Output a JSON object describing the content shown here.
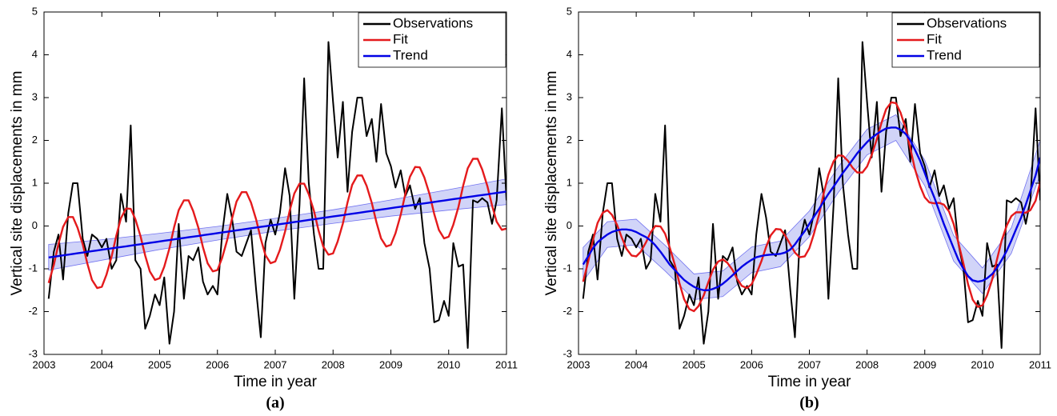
{
  "chart_data": [
    {
      "type": "line",
      "caption": "(a)",
      "x_label": "Time in year",
      "y_label": "Vertical site displacements in mm",
      "xlim": [
        2003,
        2011
      ],
      "ylim": [
        -3,
        5
      ],
      "xticks": [
        2003,
        2004,
        2005,
        2006,
        2007,
        2008,
        2009,
        2010,
        2011
      ],
      "yticks": [
        -3,
        -2,
        -1,
        0,
        1,
        2,
        3,
        4,
        5
      ],
      "legend": "upper right",
      "x": [
        2003.08,
        2003.17,
        2003.25,
        2003.33,
        2003.42,
        2003.5,
        2003.58,
        2003.67,
        2003.75,
        2003.83,
        2003.92,
        2004,
        2004.08,
        2004.17,
        2004.25,
        2004.33,
        2004.42,
        2004.5,
        2004.58,
        2004.67,
        2004.75,
        2004.83,
        2004.92,
        2005,
        2005.08,
        2005.17,
        2005.25,
        2005.33,
        2005.42,
        2005.5,
        2005.58,
        2005.67,
        2005.75,
        2005.83,
        2005.92,
        2006,
        2006.08,
        2006.17,
        2006.25,
        2006.33,
        2006.42,
        2006.5,
        2006.58,
        2006.67,
        2006.75,
        2006.83,
        2006.92,
        2007,
        2007.08,
        2007.17,
        2007.25,
        2007.33,
        2007.42,
        2007.5,
        2007.58,
        2007.67,
        2007.75,
        2007.83,
        2007.92,
        2008,
        2008.08,
        2008.17,
        2008.25,
        2008.33,
        2008.42,
        2008.5,
        2008.58,
        2008.67,
        2008.75,
        2008.83,
        2008.92,
        2009,
        2009.08,
        2009.17,
        2009.25,
        2009.33,
        2009.42,
        2009.5,
        2009.58,
        2009.67,
        2009.75,
        2009.83,
        2009.92,
        2010,
        2010.08,
        2010.17,
        2010.25,
        2010.33,
        2010.42,
        2010.5,
        2010.58,
        2010.67,
        2010.75,
        2010.83,
        2010.92,
        2011
      ],
      "series": [
        {
          "name": "Observations",
          "color": "#000000",
          "values": [
            -1.7,
            -0.6,
            -0.2,
            -1.25,
            0.3,
            1.0,
            1.0,
            -0.3,
            -0.7,
            -0.2,
            -0.3,
            -0.5,
            -0.3,
            -1.0,
            -0.8,
            0.75,
            0.1,
            2.35,
            -0.8,
            -1.0,
            -2.4,
            -2.1,
            -1.6,
            -1.85,
            -1.2,
            -2.75,
            -2.0,
            0.05,
            -1.7,
            -0.7,
            -0.8,
            -0.5,
            -1.3,
            -1.6,
            -1.4,
            -1.6,
            -0.2,
            0.75,
            0.2,
            -0.6,
            -0.7,
            -0.4,
            -0.1,
            -1.5,
            -2.6,
            -0.4,
            0.15,
            -0.2,
            0.3,
            1.35,
            0.7,
            -1.7,
            0.5,
            3.45,
            1.0,
            -0.2,
            -1.0,
            -1.0,
            4.3,
            2.9,
            1.6,
            2.9,
            0.8,
            2.2,
            3.0,
            3.0,
            2.1,
            2.5,
            1.5,
            2.85,
            1.7,
            1.4,
            0.9,
            1.3,
            0.7,
            0.95,
            0.4,
            0.65,
            -0.4,
            -1.0,
            -2.25,
            -2.2,
            -1.75,
            -2.1,
            -0.4,
            -0.95,
            -0.9,
            -2.85,
            0.6,
            0.55,
            0.65,
            0.55,
            0.05,
            0.6,
            2.75,
            0.6
          ]
        },
        {
          "name": "Fit",
          "color": "#e41a1c",
          "values": [
            -1.33,
            -0.91,
            -0.42,
            -0.02,
            0.21,
            0.21,
            -0.04,
            -0.43,
            -0.88,
            -1.26,
            -1.45,
            -1.42,
            -1.14,
            -0.71,
            -0.23,
            0.18,
            0.41,
            0.4,
            0.16,
            -0.24,
            -0.69,
            -1.06,
            -1.26,
            -1.22,
            -0.95,
            -0.52,
            -0.03,
            0.37,
            0.6,
            0.6,
            0.35,
            -0.04,
            -0.5,
            -0.87,
            -1.06,
            -1.03,
            -0.75,
            -0.32,
            0.16,
            0.57,
            0.79,
            0.79,
            0.55,
            0.15,
            -0.3,
            -0.68,
            -0.87,
            -0.83,
            -0.56,
            -0.13,
            0.36,
            0.76,
            0.99,
            0.99,
            0.74,
            0.35,
            -0.11,
            -0.48,
            -0.67,
            -0.64,
            -0.36,
            0.06,
            0.55,
            0.96,
            1.18,
            1.18,
            0.94,
            0.54,
            0.09,
            -0.29,
            -0.48,
            -0.44,
            -0.17,
            0.26,
            0.75,
            1.15,
            1.38,
            1.37,
            1.13,
            0.74,
            0.28,
            -0.09,
            -0.29,
            -0.25,
            0.03,
            0.45,
            0.94,
            1.35,
            1.57,
            1.57,
            1.32,
            0.93,
            0.48,
            0.1,
            -0.09,
            -0.06
          ]
        },
        {
          "name": "Trend",
          "color": "#0000e6",
          "values": [
            -0.734,
            -0.718,
            -0.701,
            -0.685,
            -0.669,
            -0.653,
            -0.637,
            -0.62,
            -0.604,
            -0.588,
            -0.572,
            -0.556,
            -0.539,
            -0.523,
            -0.507,
            -0.491,
            -0.475,
            -0.458,
            -0.442,
            -0.426,
            -0.41,
            -0.394,
            -0.377,
            -0.361,
            -0.345,
            -0.329,
            -0.313,
            -0.296,
            -0.28,
            -0.264,
            -0.248,
            -0.232,
            -0.215,
            -0.199,
            -0.183,
            -0.167,
            -0.151,
            -0.134,
            -0.118,
            -0.102,
            -0.086,
            -0.07,
            -0.053,
            -0.037,
            -0.021,
            -0.005,
            0.012,
            0.028,
            0.044,
            0.06,
            0.076,
            0.093,
            0.109,
            0.125,
            0.141,
            0.157,
            0.174,
            0.19,
            0.206,
            0.222,
            0.238,
            0.254,
            0.271,
            0.287,
            0.303,
            0.319,
            0.335,
            0.352,
            0.368,
            0.384,
            0.4,
            0.416,
            0.433,
            0.449,
            0.465,
            0.481,
            0.497,
            0.514,
            0.53,
            0.546,
            0.562,
            0.578,
            0.595,
            0.611,
            0.627,
            0.643,
            0.659,
            0.676,
            0.692,
            0.708,
            0.724,
            0.74,
            0.757,
            0.773,
            0.789,
            0.805
          ],
          "band": {
            "color": "#9aa0f0",
            "x": [
              2003.08,
              2004,
              2005,
              2006,
              2007,
              2008,
              2009,
              2010,
              2011
            ],
            "lower": [
              -1.03,
              -0.8,
              -0.55,
              -0.33,
              -0.12,
              0.06,
              0.23,
              0.37,
              0.5
            ],
            "upper": [
              -0.43,
              -0.32,
              -0.17,
              -0.01,
              0.18,
              0.38,
              0.61,
              0.85,
              1.1
            ]
          }
        }
      ]
    },
    {
      "type": "line",
      "caption": "(b)",
      "x_label": "Time in year",
      "y_label": "Vertical site displacements in mm",
      "xlim": [
        2003,
        2011
      ],
      "ylim": [
        -3,
        5
      ],
      "xticks": [
        2003,
        2004,
        2005,
        2006,
        2007,
        2008,
        2009,
        2010,
        2011
      ],
      "yticks": [
        -3,
        -2,
        -1,
        0,
        1,
        2,
        3,
        4,
        5
      ],
      "legend": "upper right",
      "x": [
        2003.08,
        2003.17,
        2003.25,
        2003.33,
        2003.42,
        2003.5,
        2003.58,
        2003.67,
        2003.75,
        2003.83,
        2003.92,
        2004,
        2004.08,
        2004.17,
        2004.25,
        2004.33,
        2004.42,
        2004.5,
        2004.58,
        2004.67,
        2004.75,
        2004.83,
        2004.92,
        2005,
        2005.08,
        2005.17,
        2005.25,
        2005.33,
        2005.42,
        2005.5,
        2005.58,
        2005.67,
        2005.75,
        2005.83,
        2005.92,
        2006,
        2006.08,
        2006.17,
        2006.25,
        2006.33,
        2006.42,
        2006.5,
        2006.58,
        2006.67,
        2006.75,
        2006.83,
        2006.92,
        2007,
        2007.08,
        2007.17,
        2007.25,
        2007.33,
        2007.42,
        2007.5,
        2007.58,
        2007.67,
        2007.75,
        2007.83,
        2007.92,
        2008,
        2008.08,
        2008.17,
        2008.25,
        2008.33,
        2008.42,
        2008.5,
        2008.58,
        2008.67,
        2008.75,
        2008.83,
        2008.92,
        2009,
        2009.08,
        2009.17,
        2009.25,
        2009.33,
        2009.42,
        2009.5,
        2009.58,
        2009.67,
        2009.75,
        2009.83,
        2009.92,
        2010,
        2010.08,
        2010.17,
        2010.25,
        2010.33,
        2010.42,
        2010.5,
        2010.58,
        2010.67,
        2010.75,
        2010.83,
        2010.92,
        2011
      ],
      "series": [
        {
          "name": "Observations",
          "color": "#000000",
          "values": [
            -1.7,
            -0.6,
            -0.2,
            -1.25,
            0.3,
            1.0,
            1.0,
            -0.3,
            -0.7,
            -0.2,
            -0.3,
            -0.5,
            -0.3,
            -1.0,
            -0.8,
            0.75,
            0.1,
            2.35,
            -0.8,
            -1.0,
            -2.4,
            -2.1,
            -1.6,
            -1.85,
            -1.2,
            -2.75,
            -2.0,
            0.05,
            -1.7,
            -0.7,
            -0.8,
            -0.5,
            -1.3,
            -1.6,
            -1.4,
            -1.6,
            -0.2,
            0.75,
            0.2,
            -0.6,
            -0.7,
            -0.4,
            -0.1,
            -1.5,
            -2.6,
            -0.4,
            0.15,
            -0.2,
            0.3,
            1.35,
            0.7,
            -1.7,
            0.5,
            3.45,
            1.0,
            -0.2,
            -1.0,
            -1.0,
            4.3,
            2.9,
            1.6,
            2.9,
            0.8,
            2.2,
            3.0,
            3.0,
            2.1,
            2.5,
            1.5,
            2.85,
            1.7,
            1.4,
            0.9,
            1.3,
            0.7,
            0.95,
            0.4,
            0.65,
            -0.4,
            -1.0,
            -2.25,
            -2.2,
            -1.75,
            -2.1,
            -0.4,
            -0.95,
            -0.9,
            -2.85,
            0.6,
            0.55,
            0.65,
            0.55,
            0.05,
            0.6,
            2.75,
            0.6
          ]
        },
        {
          "name": "Fit",
          "color": "#e41a1c",
          "values": [
            -1.3,
            -0.82,
            -0.33,
            0.07,
            0.31,
            0.37,
            0.26,
            0.02,
            -0.27,
            -0.53,
            -0.69,
            -0.71,
            -0.6,
            -0.38,
            -0.15,
            0.0,
            -0.01,
            -0.18,
            -0.5,
            -0.91,
            -1.34,
            -1.71,
            -1.94,
            -1.99,
            -1.87,
            -1.62,
            -1.31,
            -1.02,
            -0.83,
            -0.78,
            -0.86,
            -1.03,
            -1.24,
            -1.4,
            -1.45,
            -1.36,
            -1.13,
            -0.82,
            -0.49,
            -0.22,
            -0.07,
            -0.08,
            -0.22,
            -0.43,
            -0.62,
            -0.73,
            -0.71,
            -0.52,
            -0.18,
            0.28,
            0.77,
            1.2,
            1.51,
            1.65,
            1.64,
            1.52,
            1.36,
            1.25,
            1.25,
            1.39,
            1.66,
            2.03,
            2.41,
            2.73,
            2.89,
            2.87,
            2.65,
            2.27,
            1.81,
            1.33,
            0.93,
            0.67,
            0.55,
            0.53,
            0.54,
            0.5,
            0.34,
            0.05,
            -0.38,
            -0.88,
            -1.36,
            -1.72,
            -1.89,
            -1.85,
            -1.62,
            -1.24,
            -0.79,
            -0.35,
            0.01,
            0.23,
            0.32,
            0.32,
            0.31,
            0.37,
            0.59,
            1.03
          ]
        },
        {
          "name": "Trend",
          "color": "#0000e6",
          "values": [
            -0.9,
            -0.7,
            -0.52,
            -0.38,
            -0.28,
            -0.2,
            -0.14,
            -0.1,
            -0.08,
            -0.08,
            -0.1,
            -0.14,
            -0.2,
            -0.26,
            -0.34,
            -0.45,
            -0.6,
            -0.75,
            -0.9,
            -1.03,
            -1.15,
            -1.26,
            -1.35,
            -1.42,
            -1.47,
            -1.5,
            -1.5,
            -1.47,
            -1.42,
            -1.35,
            -1.26,
            -1.15,
            -1.05,
            -0.95,
            -0.86,
            -0.79,
            -0.73,
            -0.7,
            -0.68,
            -0.67,
            -0.66,
            -0.65,
            -0.62,
            -0.55,
            -0.43,
            -0.28,
            -0.12,
            0.05,
            0.22,
            0.4,
            0.58,
            0.75,
            0.92,
            1.08,
            1.24,
            1.4,
            1.55,
            1.7,
            1.84,
            1.96,
            2.06,
            2.15,
            2.22,
            2.28,
            2.3,
            2.3,
            2.25,
            2.15,
            2.0,
            1.78,
            1.52,
            1.24,
            0.95,
            0.65,
            0.35,
            0.05,
            -0.25,
            -0.52,
            -0.78,
            -1.0,
            -1.17,
            -1.27,
            -1.3,
            -1.28,
            -1.22,
            -1.12,
            -0.98,
            -0.8,
            -0.58,
            -0.34,
            -0.08,
            0.2,
            0.5,
            0.82,
            1.18,
            1.6
          ],
          "band": {
            "color": "#9aa0f0",
            "x": [
              2003.08,
              2003.5,
              2004,
              2004.5,
              2005,
              2005.5,
              2006,
              2006.5,
              2007,
              2007.5,
              2008,
              2008.5,
              2009,
              2009.5,
              2010,
              2010.5,
              2011
            ],
            "lower": [
              -1.3,
              -0.5,
              -0.44,
              -1.05,
              -1.72,
              -1.65,
              -1.09,
              -0.95,
              -0.25,
              0.78,
              1.66,
              2.0,
              0.94,
              -0.82,
              -1.58,
              -0.64,
              1.2
            ],
            "upper": [
              -0.5,
              0.1,
              0.16,
              -0.45,
              -1.12,
              -1.05,
              -0.49,
              -0.35,
              0.35,
              1.38,
              2.26,
              2.6,
              1.54,
              -0.22,
              -0.98,
              -0.04,
              2.0
            ]
          }
        }
      ]
    }
  ]
}
